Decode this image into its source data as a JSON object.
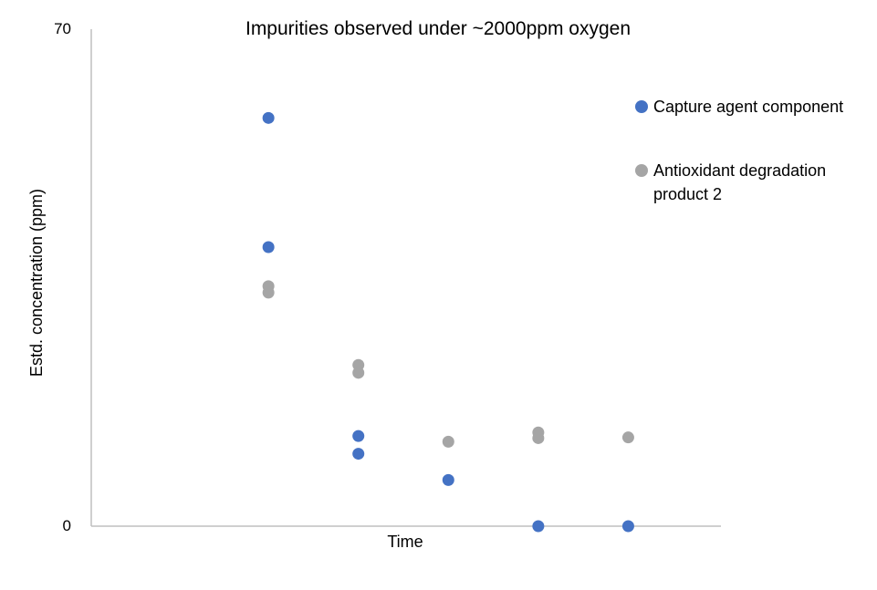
{
  "chart_data": {
    "type": "scatter",
    "title": "Impurities observed under ~2000ppm oxygen",
    "xlabel": "Time",
    "ylabel": "Estd. concentration (ppm)",
    "ylim": [
      0,
      70
    ],
    "yticks": [
      "0",
      "70"
    ],
    "xlim": [
      0,
      7
    ],
    "grid": false,
    "legend_position": "right",
    "series": [
      {
        "name": "Capture agent component",
        "color": "#4472C4",
        "points": [
          {
            "x": 2,
            "y": 57.5
          },
          {
            "x": 2,
            "y": 39.3
          },
          {
            "x": 3,
            "y": 12.7
          },
          {
            "x": 3,
            "y": 10.2
          },
          {
            "x": 4,
            "y": 6.5
          },
          {
            "x": 5,
            "y": 0
          },
          {
            "x": 6,
            "y": 0
          }
        ]
      },
      {
        "name": "Antioxidant degradation product 2",
        "color": "#A5A5A5",
        "points": [
          {
            "x": 2,
            "y": 33.8
          },
          {
            "x": 2,
            "y": 32.9
          },
          {
            "x": 3,
            "y": 22.7
          },
          {
            "x": 3,
            "y": 21.6
          },
          {
            "x": 4,
            "y": 11.9
          },
          {
            "x": 5,
            "y": 13.2
          },
          {
            "x": 5,
            "y": 12.4
          },
          {
            "x": 6,
            "y": 12.5
          }
        ]
      }
    ]
  }
}
